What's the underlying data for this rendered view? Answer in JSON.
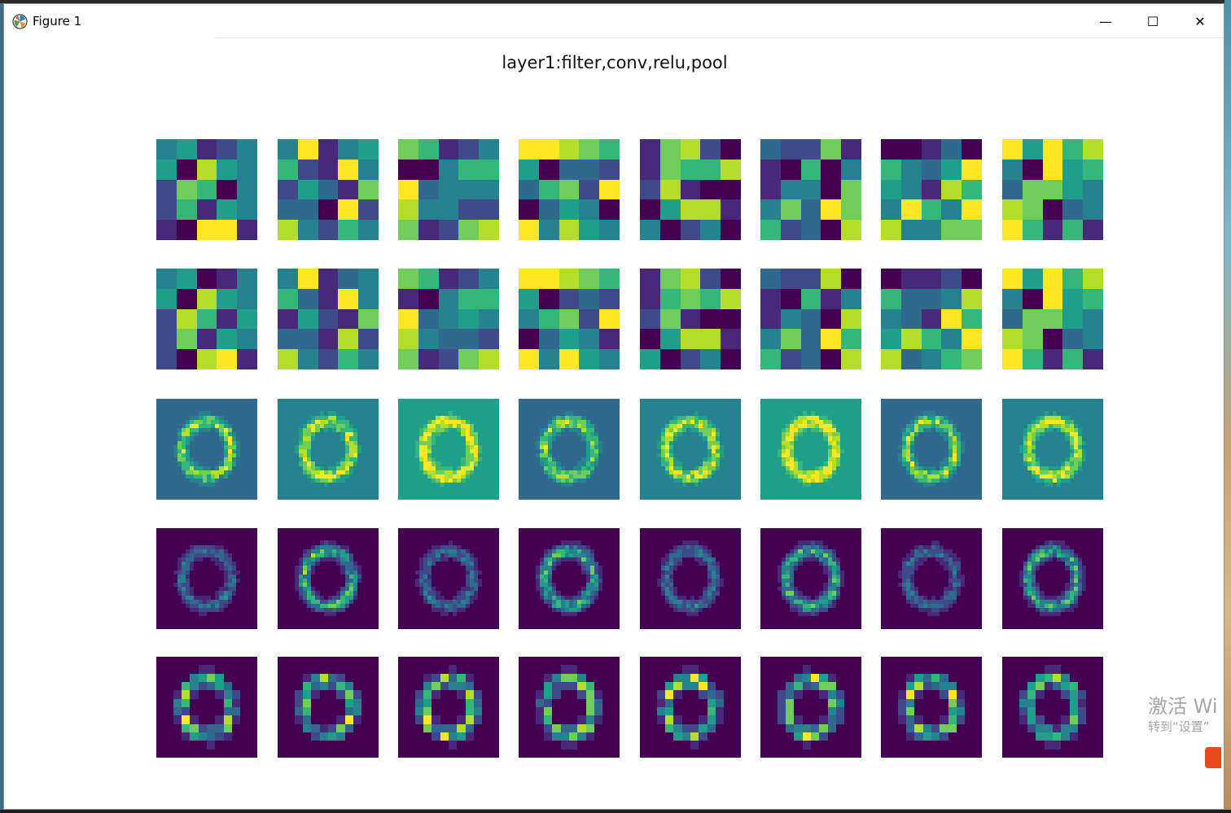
{
  "window": {
    "title": "Figure 1",
    "minimize_glyph": "—",
    "maximize_glyph": "☐",
    "close_glyph": "✕"
  },
  "figure": {
    "title": "layer1:filter,conv,relu,pool",
    "rows": [
      "filter",
      "filter",
      "conv",
      "relu",
      "pool"
    ],
    "columns": 8,
    "colormap": "viridis"
  },
  "overlay": {
    "activation_line1": "激活 Wi",
    "activation_line2": "转到“设置”"
  },
  "icons": {
    "app_icon": "matplotlib-icon",
    "minimize": "minimize-icon",
    "maximize": "maximize-icon",
    "close": "close-icon"
  }
}
